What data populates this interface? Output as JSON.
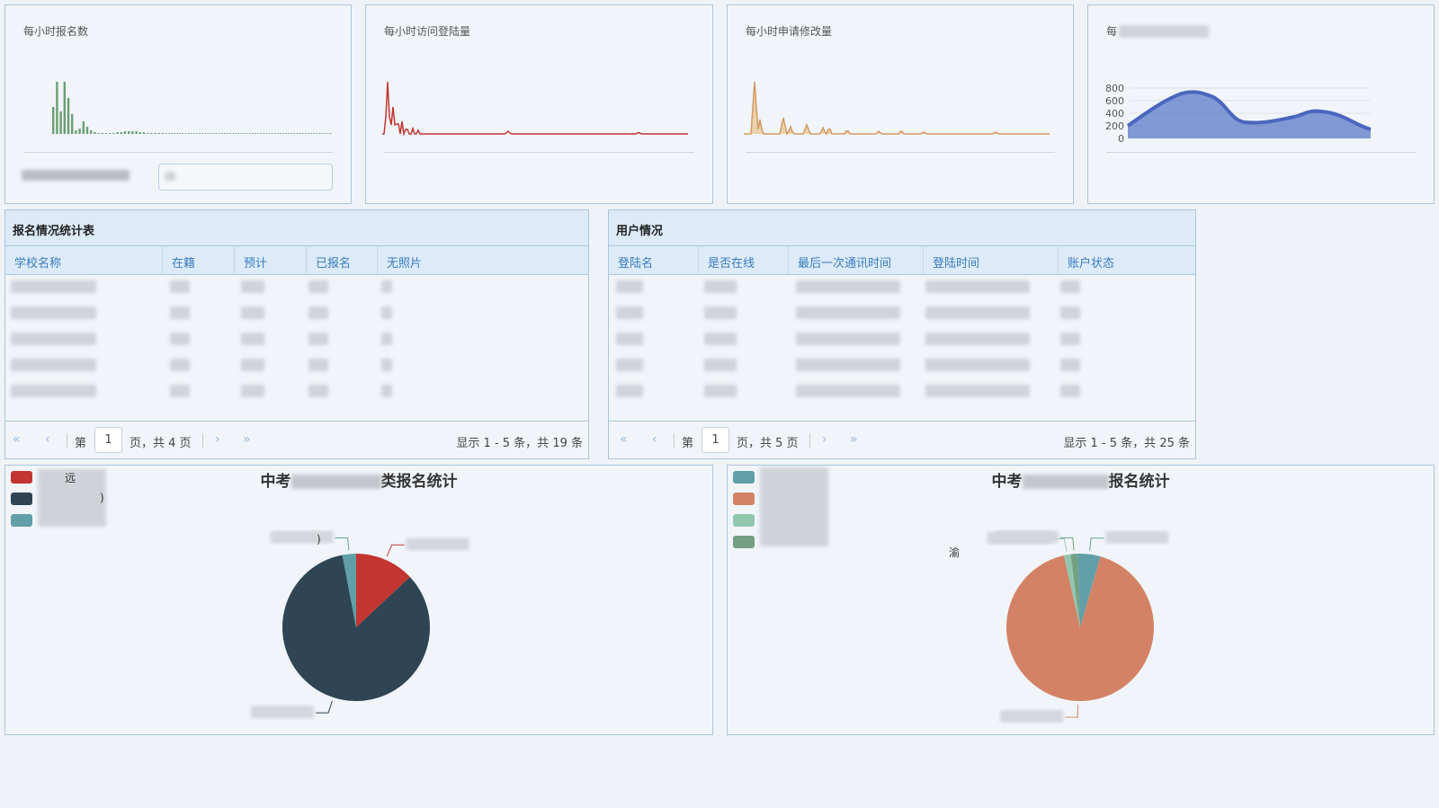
{
  "mini_charts": [
    {
      "title": "每小时报名数",
      "color": "#6a9e72"
    },
    {
      "title": "每小时访问登陆量",
      "color": "#c23531"
    },
    {
      "title": "每小时申请修改量",
      "color": "#d49a63"
    },
    {
      "title": "每",
      "color": "#5b79c8",
      "y_ticks": [
        "800",
        "600",
        "400",
        "200",
        "0"
      ]
    }
  ],
  "reg_table": {
    "title": "报名情况统计表",
    "columns": [
      "学校名称",
      "在籍",
      "预计",
      "已报名",
      "无照片"
    ],
    "pager": {
      "first": "«",
      "prev": "‹",
      "page_prefix": "第",
      "page": "1",
      "page_suffix": "页，共 4 页",
      "next": "›",
      "last": "»",
      "info": "显示 1 - 5 条，共 19 条"
    }
  },
  "user_table": {
    "title": "用户情况",
    "columns": [
      "登陆名",
      "是否在线",
      "最后一次通讯时间",
      "登陆时间",
      "账户状态"
    ],
    "pager": {
      "first": "«",
      "prev": "‹",
      "page_prefix": "第",
      "page": "1",
      "page_suffix": "页，共 5 页",
      "next": "›",
      "last": "»",
      "info": "显示 1 - 5 条，共 25 条"
    }
  },
  "pie_left": {
    "title_prefix": "中考",
    "title_suffix": "类报名统计",
    "legend": [
      {
        "label": "远",
        "color": "#c23531"
      },
      {
        "label": ")",
        "color": "#2f4554"
      },
      {
        "label": "",
        "color": "#61a0a8"
      }
    ],
    "label_fragments": [
      ")"
    ],
    "chart_data": {
      "type": "pie",
      "series": [
        {
          "color": "#c23531",
          "value": 13
        },
        {
          "color": "#2f4554",
          "value": 84
        },
        {
          "color": "#61a0a8",
          "value": 3
        }
      ]
    }
  },
  "pie_right": {
    "title_prefix": "中考",
    "title_suffix": "报名统计",
    "legend": [
      {
        "color": "#61a0a8"
      },
      {
        "color": "#d48265"
      },
      {
        "color": "#91c7ae"
      },
      {
        "color": "#749f83"
      }
    ],
    "label_fragments": [
      "渝"
    ],
    "chart_data": {
      "type": "pie",
      "series": [
        {
          "color": "#61a0a8",
          "value": 5
        },
        {
          "color": "#d48265",
          "value": 92
        },
        {
          "color": "#91c7ae",
          "value": 1.5
        },
        {
          "color": "#749f83",
          "value": 1.5
        }
      ]
    }
  }
}
